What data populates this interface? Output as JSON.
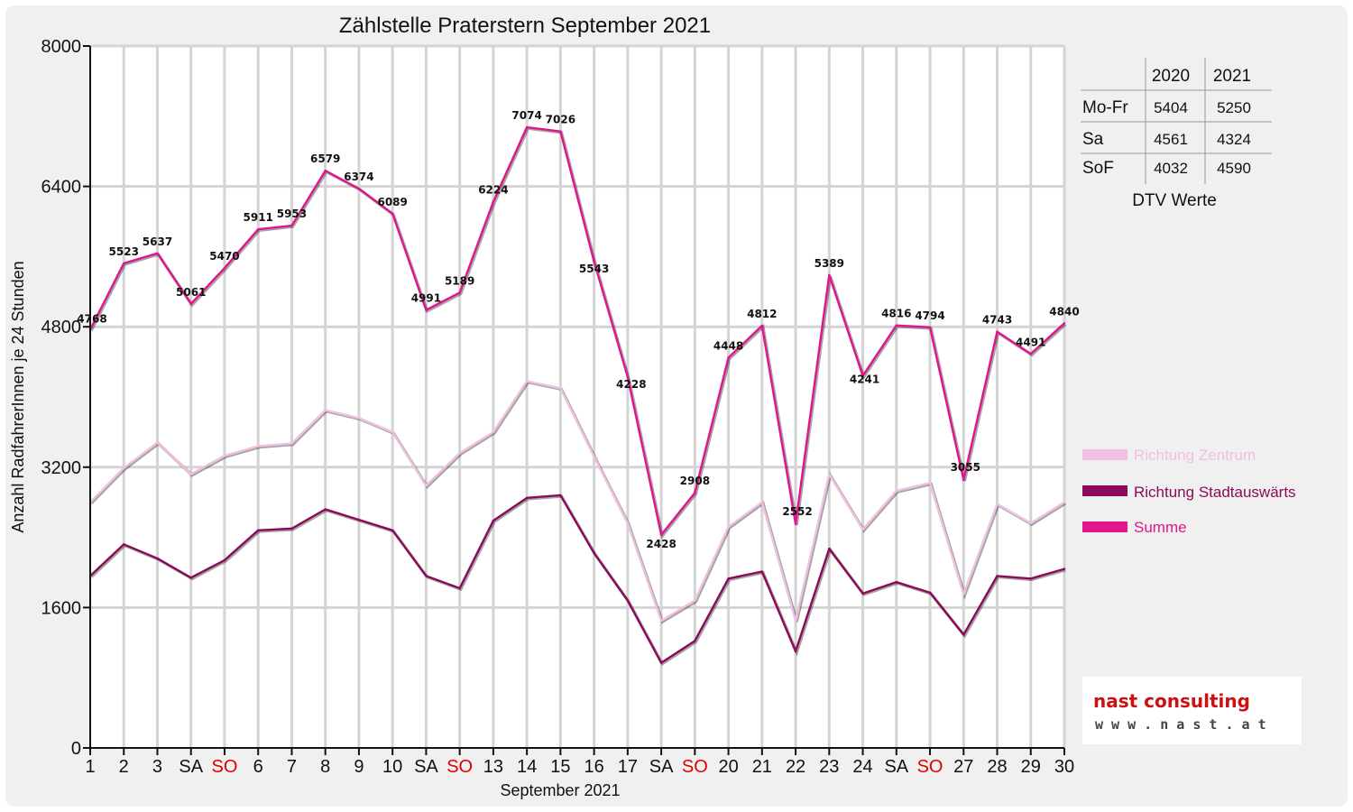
{
  "chart_data": {
    "type": "line",
    "title": "Zählstelle Praterstern September 2021",
    "xlabel": "September 2021",
    "ylabel": "Anzahl RadfahrerInnen je 24 Stunden",
    "ylim": [
      0,
      8000
    ],
    "yticks": [
      "0",
      "1600",
      "3200",
      "4800",
      "6400",
      "8000"
    ],
    "categories": [
      "1",
      "2",
      "3",
      "SA",
      "SO",
      "6",
      "7",
      "8",
      "9",
      "10",
      "SA",
      "SO",
      "13",
      "14",
      "15",
      "16",
      "17",
      "SA",
      "SO",
      "20",
      "21",
      "22",
      "23",
      "24",
      "SA",
      "SO",
      "27",
      "28",
      "29",
      "30"
    ],
    "weekend_categories": [
      "SO"
    ],
    "grid": true,
    "legend_position": "right",
    "series": [
      {
        "name": "Richtung Zentrum",
        "color": "#f0c0e0",
        "values": [
          2800,
          3190,
          3480,
          3120,
          3330,
          3440,
          3470,
          3850,
          3760,
          3600,
          2990,
          3360,
          3600,
          4180,
          4100,
          3320,
          2560,
          1450,
          1680,
          2520,
          2800,
          1450,
          3120,
          2490,
          2930,
          3020,
          1750,
          2780,
          2560,
          2800
        ]
      },
      {
        "name": "Richtung Stadtauswärts",
        "color": "#8b0a5a",
        "values": [
          1960,
          2320,
          2160,
          1940,
          2140,
          2480,
          2500,
          2720,
          2600,
          2480,
          1960,
          1820,
          2590,
          2850,
          2880,
          2220,
          1680,
          970,
          1220,
          1930,
          2010,
          1100,
          2270,
          1760,
          1890,
          1770,
          1290,
          1960,
          1930,
          2040
        ]
      },
      {
        "name": "Summe",
        "color": "#e0168c",
        "values": [
          4768,
          5523,
          5637,
          5061,
          5470,
          5911,
          5953,
          6579,
          6374,
          6089,
          4991,
          5189,
          6224,
          7074,
          7026,
          5543,
          4228,
          2428,
          2908,
          4448,
          4812,
          2552,
          5389,
          4241,
          4816,
          4794,
          3055,
          4743,
          4491,
          4840
        ]
      }
    ],
    "data_labels": [
      "4768",
      "5523",
      "5637",
      "5061",
      "5470",
      "5911",
      "5953",
      "6579",
      "6374",
      "6089",
      "4991",
      "5189",
      "6224",
      "7074",
      "7026",
      "5543",
      "4228",
      "2428",
      "2908",
      "4448",
      "4812",
      "2552",
      "5389",
      "4241",
      "4816",
      "4794",
      "3055",
      "4743",
      "4491",
      "4840"
    ]
  },
  "dtv_table": {
    "caption": "DTV Werte",
    "headers": [
      "2020",
      "2021"
    ],
    "rows": [
      {
        "label": "Mo-Fr",
        "v2020": "5404",
        "v2021": "5250"
      },
      {
        "label": "Sa",
        "v2020": "4561",
        "v2021": "4324"
      },
      {
        "label": "SoF",
        "v2020": "4032",
        "v2021": "4590"
      }
    ]
  },
  "logo": {
    "brand": "nast consulting",
    "url": "w w w . n a s t . a t"
  }
}
